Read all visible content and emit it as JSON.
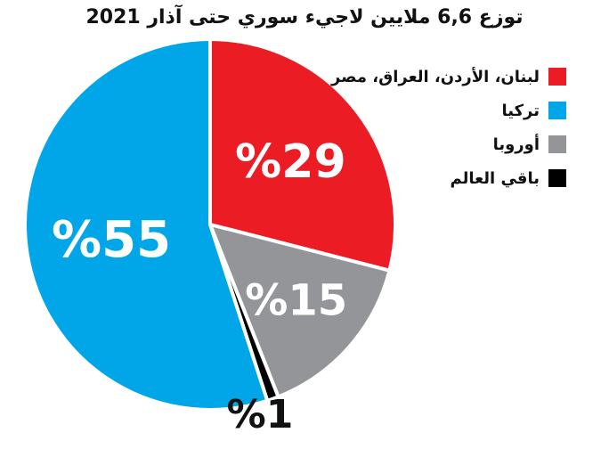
{
  "chart_data": {
    "type": "pie",
    "title": "توزع 6,6 ملايين لاجيء سوري حتى آذار 2021",
    "slices": [
      {
        "label": "لبنان، الأردن، العراق، مصر",
        "value": 29,
        "value_label": "%29",
        "color": "#ec1c24"
      },
      {
        "label": "أوروبا",
        "value": 15,
        "value_label": "%15",
        "color": "#939598"
      },
      {
        "label": "باقي العالم",
        "value": 1,
        "value_label": "%1",
        "color": "#000000"
      },
      {
        "label": "تركيا",
        "value": 55,
        "value_label": "%55",
        "color": "#00a6e8"
      }
    ],
    "legend": [
      "لبنان، الأردن، العراق، مصر",
      "تركيا",
      "أوروبا",
      "باقي العالم"
    ],
    "legend_colors": [
      "#ec1c24",
      "#00a6e8",
      "#939598",
      "#000000"
    ],
    "legend_position": "top-right",
    "unit": "%"
  }
}
